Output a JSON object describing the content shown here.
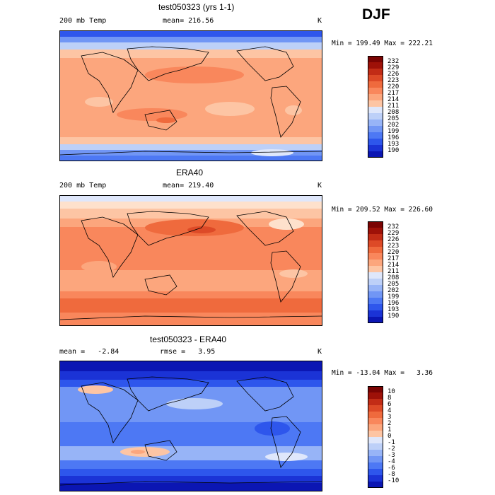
{
  "season": "DJF",
  "colors": {
    "warm": [
      "#fee1cc",
      "#fdc5a4",
      "#fca67d",
      "#f9875c",
      "#ef6a3d",
      "#dd4a27",
      "#c22c16",
      "#9e1108",
      "#7a0403"
    ],
    "cool": [
      "#0b0b85",
      "#0b16b3",
      "#1b33d6",
      "#2e56ec",
      "#4d78f4",
      "#7196f5",
      "#97b4f7",
      "#bdd0f8",
      "#dfe7fb"
    ],
    "coast": "#000000"
  },
  "panels": [
    {
      "title": "test050323 (yrs 1-1)",
      "left_label": "200 mb Temp",
      "mean_text": "mean= 216.56",
      "unit": "K",
      "minmax": "Min = 199.49 Max = 222.21"
    },
    {
      "title": "ERA40",
      "left_label": "200 mb Temp",
      "mean_text": "mean= 219.40",
      "unit": "K",
      "minmax": "Min = 209.52 Max = 226.60"
    },
    {
      "title": "test050323 - ERA40",
      "left_label": "mean =   -2.84",
      "mean_text": "rmse =   3.95",
      "unit": "K",
      "minmax": "Min = -13.04 Max =   3.36"
    }
  ],
  "colorbars": [
    [
      "232",
      "229",
      "226",
      "223",
      "220",
      "217",
      "214",
      "211",
      "208",
      "205",
      "202",
      "199",
      "196",
      "193",
      "190"
    ],
    [
      "232",
      "229",
      "226",
      "223",
      "220",
      "217",
      "214",
      "211",
      "208",
      "205",
      "202",
      "199",
      "196",
      "193",
      "190"
    ],
    [
      "10",
      "8",
      "6",
      "4",
      "3",
      "2",
      "1",
      "0",
      "-1",
      "-2",
      "-3",
      "-4",
      "-6",
      "-8",
      "-10"
    ]
  ],
  "chart_data": [
    {
      "type": "heatmap",
      "title": "test050323 (yrs 1-1)",
      "variable": "200 mb Temp",
      "unit": "K",
      "mean": 216.56,
      "min": 199.49,
      "max": 222.21,
      "contour_levels": [
        190,
        193,
        196,
        199,
        202,
        205,
        208,
        211,
        214,
        217,
        220,
        223,
        226,
        229,
        232
      ],
      "lat_profile": [
        [
          -90,
          205
        ],
        [
          -75,
          209
        ],
        [
          -60,
          216
        ],
        [
          -45,
          219
        ],
        [
          -30,
          220
        ],
        [
          -15,
          218
        ],
        [
          0,
          216
        ],
        [
          15,
          218
        ],
        [
          30,
          219
        ],
        [
          45,
          216
        ],
        [
          60,
          213
        ],
        [
          75,
          208
        ],
        [
          90,
          205
        ]
      ]
    },
    {
      "type": "heatmap",
      "title": "ERA40",
      "variable": "200 mb Temp",
      "unit": "K",
      "mean": 219.4,
      "min": 209.52,
      "max": 226.6,
      "contour_levels": [
        190,
        193,
        196,
        199,
        202,
        205,
        208,
        211,
        214,
        217,
        220,
        223,
        226,
        229,
        232
      ],
      "lat_profile": [
        [
          -90,
          223
        ],
        [
          -75,
          224
        ],
        [
          -60,
          225
        ],
        [
          -45,
          221
        ],
        [
          -30,
          219
        ],
        [
          -15,
          221
        ],
        [
          0,
          220
        ],
        [
          15,
          221
        ],
        [
          30,
          222
        ],
        [
          45,
          219
        ],
        [
          60,
          216
        ],
        [
          75,
          213
        ],
        [
          90,
          211
        ]
      ]
    },
    {
      "type": "heatmap",
      "title": "test050323 - ERA40",
      "unit": "K",
      "mean": -2.84,
      "rmse": 3.95,
      "min": -13.04,
      "max": 3.36,
      "contour_levels": [
        -10,
        -8,
        -6,
        -4,
        -3,
        -2,
        -1,
        0,
        1,
        2,
        3,
        4,
        6,
        8,
        10
      ],
      "lat_profile": [
        [
          -90,
          -12
        ],
        [
          -75,
          -12
        ],
        [
          -60,
          -8
        ],
        [
          -45,
          -2
        ],
        [
          -30,
          -1
        ],
        [
          -15,
          -3
        ],
        [
          0,
          -4
        ],
        [
          15,
          -3
        ],
        [
          30,
          -3
        ],
        [
          45,
          -3
        ],
        [
          60,
          -5
        ],
        [
          75,
          -8
        ],
        [
          90,
          -9
        ]
      ]
    }
  ]
}
